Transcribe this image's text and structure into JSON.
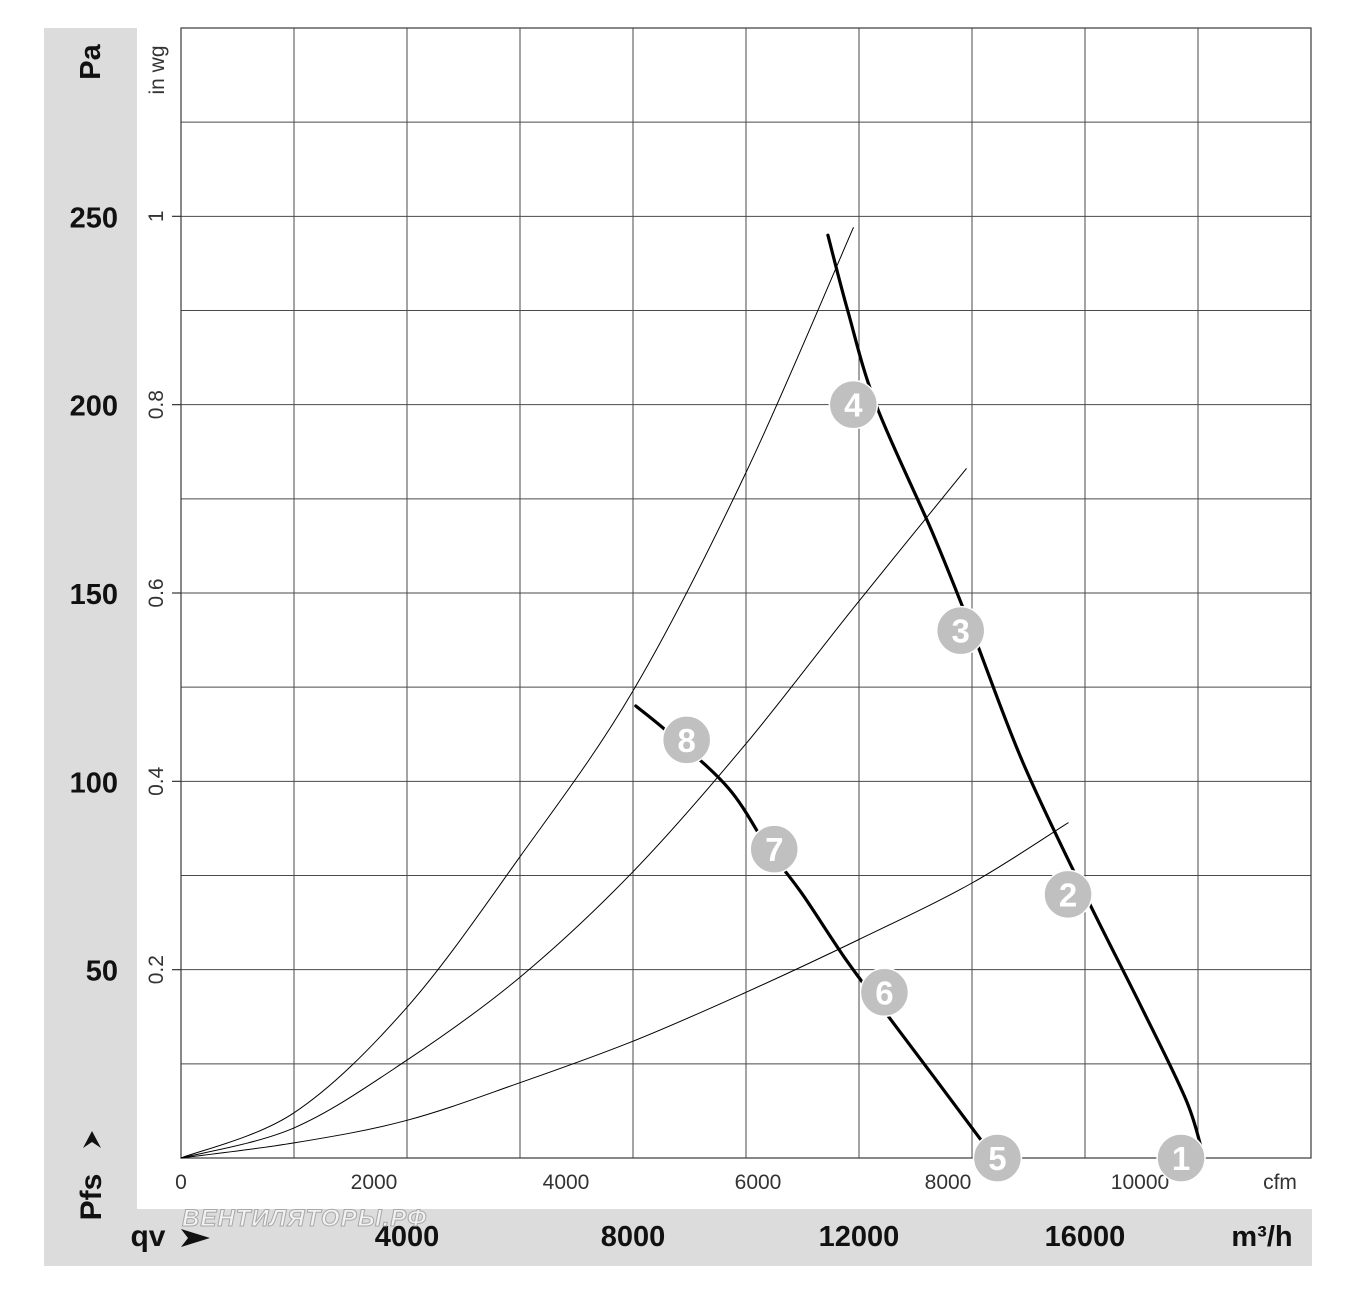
{
  "chart_data": {
    "type": "line",
    "x_axis_bottom": {
      "label": "qv",
      "unit": "m³/h",
      "ticks": [
        4000,
        8000,
        12000,
        16000
      ],
      "range": [
        0,
        20000
      ]
    },
    "x_axis_secondary": {
      "unit": "cfm",
      "ticks": [
        0,
        2000,
        4000,
        6000,
        8000,
        10000
      ],
      "range_display": "cfm"
    },
    "y_axis_left": {
      "label": "Pfs",
      "unit": "Pa",
      "ticks": [
        50,
        100,
        150,
        200,
        250
      ],
      "range": [
        0,
        300
      ]
    },
    "y_axis_secondary": {
      "unit": "in wg",
      "ticks": [
        0.2,
        0.4,
        0.6,
        0.8,
        1
      ]
    },
    "grid": true,
    "watermark": "ВЕНТИЛЯТОРЫ.РФ",
    "series": [
      {
        "points": [
          [
            11450,
            245
          ],
          [
            11800,
            225
          ],
          [
            12300,
            200
          ],
          [
            13300,
            166
          ],
          [
            14000,
            140
          ],
          [
            14900,
            105
          ],
          [
            16000,
            70
          ],
          [
            17000,
            40
          ],
          [
            17800,
            15
          ],
          [
            18100,
            0
          ]
        ]
      },
      {
        "points": [
          [
            8050,
            120
          ],
          [
            8700,
            112
          ],
          [
            9700,
            98
          ],
          [
            10400,
            82
          ],
          [
            11000,
            70
          ],
          [
            11800,
            52
          ],
          [
            12600,
            36
          ],
          [
            13300,
            22
          ],
          [
            14100,
            6
          ],
          [
            14400,
            0
          ]
        ]
      },
      {
        "points": [
          [
            0,
            0
          ],
          [
            2000,
            4
          ],
          [
            4000,
            10
          ],
          [
            6000,
            20
          ],
          [
            8000,
            31
          ],
          [
            10000,
            44
          ],
          [
            12000,
            58
          ],
          [
            14000,
            73
          ],
          [
            15700,
            89
          ]
        ]
      },
      {
        "points": [
          [
            0,
            0
          ],
          [
            2000,
            8
          ],
          [
            4000,
            26
          ],
          [
            6000,
            48
          ],
          [
            8000,
            76
          ],
          [
            10000,
            110
          ],
          [
            11900,
            146
          ],
          [
            13900,
            183
          ]
        ]
      },
      {
        "points": [
          [
            0,
            0
          ],
          [
            2000,
            12
          ],
          [
            4000,
            40
          ],
          [
            6000,
            80
          ],
          [
            8000,
            124
          ],
          [
            10000,
            182
          ],
          [
            11900,
            247
          ]
        ]
      }
    ],
    "markers": [
      {
        "label": "1",
        "x": 17700,
        "y": 0
      },
      {
        "label": "2",
        "x": 15700,
        "y": 70
      },
      {
        "label": "3",
        "x": 13800,
        "y": 140
      },
      {
        "label": "4",
        "x": 11900,
        "y": 200
      },
      {
        "label": "5",
        "x": 14450,
        "y": 0
      },
      {
        "label": "6",
        "x": 12450,
        "y": 44
      },
      {
        "label": "7",
        "x": 10500,
        "y": 82
      },
      {
        "label": "8",
        "x": 8950,
        "y": 111
      }
    ]
  }
}
